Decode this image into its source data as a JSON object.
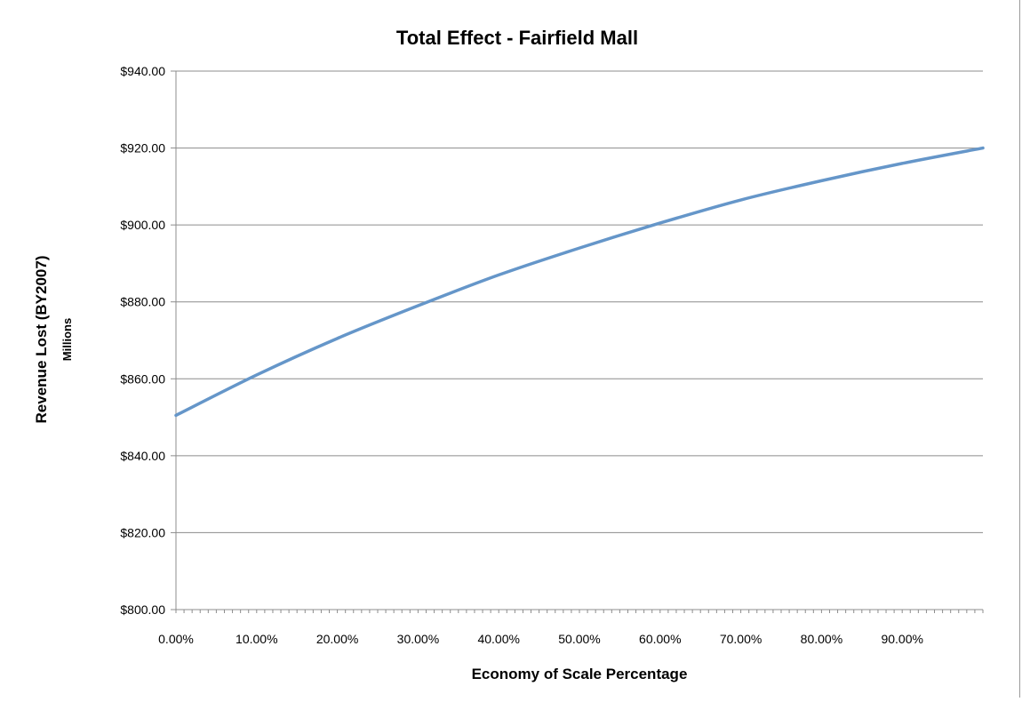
{
  "chart_data": {
    "type": "line",
    "title": "Total Effect - Fairfield Mall",
    "xlabel": "Economy of Scale Percentage",
    "ylabel": "Revenue Lost (BY2007)",
    "yunit": "Millions",
    "xlim": [
      0,
      1
    ],
    "ylim": [
      800,
      940
    ],
    "grid": true,
    "legend": "none",
    "x_tick_labels": [
      "0.00%",
      "10.00%",
      "20.00%",
      "30.00%",
      "40.00%",
      "50.00%",
      "60.00%",
      "70.00%",
      "80.00%",
      "90.00%"
    ],
    "y_tick_labels": [
      "$800.00",
      "$820.00",
      "$840.00",
      "$860.00",
      "$880.00",
      "$900.00",
      "$920.00",
      "$940.00"
    ],
    "series": [
      {
        "color": "#6596c9",
        "x": [
          0.0,
          0.1,
          0.2,
          0.3,
          0.4,
          0.5,
          0.6,
          0.7,
          0.8,
          0.9,
          1.0
        ],
        "y": [
          850.5,
          861.0,
          870.5,
          879.0,
          887.0,
          894.0,
          900.5,
          906.5,
          911.5,
          916.0,
          920.0
        ]
      }
    ]
  }
}
